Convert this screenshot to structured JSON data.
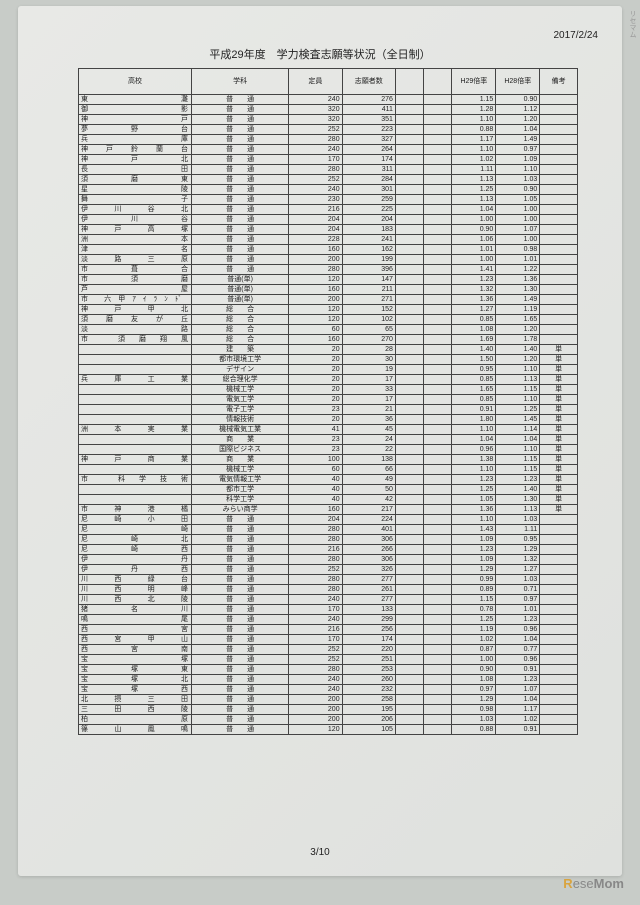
{
  "date": "2017/2/24",
  "title": "平成29年度　学力検査志願等状況（全日制）",
  "pagenum": "3/10",
  "brand_r": "R",
  "brand_ese": "ese",
  "brand_mom": "Mom",
  "side": "リセマム",
  "headers": {
    "school": "高校",
    "dept": "学科",
    "cap": "定員",
    "app": "志願者数",
    "h29": "H29倍率",
    "h28": "H28倍率",
    "note": "備考"
  },
  "rows": [
    {
      "school": "東　　　灘",
      "dept": "普　　通",
      "cap": 240,
      "app": 276,
      "h29": "1.15",
      "h28": "0.90",
      "note": ""
    },
    {
      "school": "御　　　影",
      "dept": "普　　通",
      "cap": 320,
      "app": 411,
      "h29": "1.28",
      "h28": "1.12",
      "note": ""
    },
    {
      "school": "神　　　戸",
      "dept": "普　　通",
      "cap": 320,
      "app": 351,
      "h29": "1.10",
      "h28": "1.20",
      "note": ""
    },
    {
      "school": "夢　野　台",
      "dept": "普　　通",
      "cap": 252,
      "app": 223,
      "h29": "0.88",
      "h28": "1.04",
      "note": ""
    },
    {
      "school": "兵　　　庫",
      "dept": "普　　通",
      "cap": 280,
      "app": 327,
      "h29": "1.17",
      "h28": "1.49",
      "note": ""
    },
    {
      "school": "神戸鈴蘭台",
      "dept": "普　　通",
      "cap": 240,
      "app": 264,
      "h29": "1.10",
      "h28": "0.97",
      "note": ""
    },
    {
      "school": "神　戸　北",
      "dept": "普　　通",
      "cap": 170,
      "app": 174,
      "h29": "1.02",
      "h28": "1.09",
      "note": ""
    },
    {
      "school": "長　　　田",
      "dept": "普　　通",
      "cap": 280,
      "app": 311,
      "h29": "1.11",
      "h28": "1.10",
      "note": ""
    },
    {
      "school": "須　磨　東",
      "dept": "普　　通",
      "cap": 252,
      "app": 284,
      "h29": "1.13",
      "h28": "1.03",
      "note": ""
    },
    {
      "school": "星　　　陵",
      "dept": "普　　通",
      "cap": 240,
      "app": 301,
      "h29": "1.25",
      "h28": "0.90",
      "note": ""
    },
    {
      "school": "舞　　　子",
      "dept": "普　　通",
      "cap": 230,
      "app": 259,
      "h29": "1.13",
      "h28": "1.05",
      "note": ""
    },
    {
      "school": "伊川谷北",
      "dept": "普　　通",
      "cap": 216,
      "app": 225,
      "h29": "1.04",
      "h28": "1.00",
      "note": ""
    },
    {
      "school": "伊　川　谷",
      "dept": "普　　通",
      "cap": 204,
      "app": 204,
      "h29": "1.00",
      "h28": "1.00",
      "note": ""
    },
    {
      "school": "神戸高塚",
      "dept": "普　　通",
      "cap": 204,
      "app": 183,
      "h29": "0.90",
      "h28": "1.07",
      "note": ""
    },
    {
      "school": "洲　　　本",
      "dept": "普　　通",
      "cap": 228,
      "app": 241,
      "h29": "1.06",
      "h28": "1.00",
      "note": ""
    },
    {
      "school": "津　　　名",
      "dept": "普　　通",
      "cap": 160,
      "app": 162,
      "h29": "1.01",
      "h28": "0.98",
      "note": ""
    },
    {
      "school": "淡　路　三　原",
      "dept": "普　　通",
      "cap": 200,
      "app": 199,
      "h29": "1.00",
      "h28": "1.01",
      "note": ""
    },
    {
      "school": "市　葺　合",
      "dept": "普　　通",
      "cap": 280,
      "app": 396,
      "h29": "1.41",
      "h28": "1.22",
      "note": ""
    },
    {
      "school": "市　須　磨",
      "dept": "普通(単)",
      "cap": 120,
      "app": 147,
      "h29": "1.23",
      "h28": "1.36",
      "note": ""
    },
    {
      "school": "芦　　　屋",
      "dept": "普通(単)",
      "cap": 160,
      "app": 211,
      "h29": "1.32",
      "h28": "1.30",
      "note": ""
    },
    {
      "school": "市 六甲ｱｲﾗﾝﾄﾞ",
      "dept": "普通(単)",
      "cap": 200,
      "app": 271,
      "h29": "1.36",
      "h28": "1.49",
      "note": ""
    },
    {
      "school": "神 戸 甲 北",
      "dept": "総　　合",
      "cap": 120,
      "app": 152,
      "h29": "1.27",
      "h28": "1.19",
      "note": ""
    },
    {
      "school": "須磨友が丘",
      "dept": "総　　合",
      "cap": 120,
      "app": 102,
      "h29": "0.85",
      "h28": "1.65",
      "note": ""
    },
    {
      "school": "淡　　　路",
      "dept": "総　　合",
      "cap": 60,
      "app": 65,
      "h29": "1.08",
      "h28": "1.20",
      "note": ""
    },
    {
      "school": "市 須磨翔風",
      "dept": "総　　合",
      "cap": 160,
      "app": 270,
      "h29": "1.69",
      "h28": "1.78",
      "note": ""
    },
    {
      "school": "",
      "dept": "建　　築",
      "cap": 20,
      "app": 28,
      "h29": "1.40",
      "h28": "1.40",
      "note": "単"
    },
    {
      "school": "",
      "dept": "都市環境工学",
      "cap": 20,
      "app": 30,
      "h29": "1.50",
      "h28": "1.20",
      "note": "単"
    },
    {
      "school": "",
      "dept": "デザイン",
      "cap": 20,
      "app": 19,
      "h29": "0.95",
      "h28": "1.10",
      "note": "単"
    },
    {
      "school": "兵 庫 工 業",
      "dept": "総合理化学",
      "cap": 20,
      "app": 17,
      "h29": "0.85",
      "h28": "1.13",
      "note": "単"
    },
    {
      "school": "",
      "dept": "機械工学",
      "cap": 20,
      "app": 33,
      "h29": "1.65",
      "h28": "1.15",
      "note": "単"
    },
    {
      "school": "",
      "dept": "電気工学",
      "cap": 20,
      "app": 17,
      "h29": "0.85",
      "h28": "1.10",
      "note": "単"
    },
    {
      "school": "",
      "dept": "電子工学",
      "cap": 23,
      "app": 21,
      "h29": "0.91",
      "h28": "1.25",
      "note": "単"
    },
    {
      "school": "",
      "dept": "情報技術",
      "cap": 20,
      "app": 36,
      "h29": "1.80",
      "h28": "1.45",
      "note": "単"
    },
    {
      "school": "洲 本 実 業",
      "dept": "機械電気工業",
      "cap": 41,
      "app": 45,
      "h29": "1.10",
      "h28": "1.14",
      "note": "単"
    },
    {
      "school": "",
      "dept": "商　　業",
      "cap": 23,
      "app": 24,
      "h29": "1.04",
      "h28": "1.04",
      "note": "単"
    },
    {
      "school": "",
      "dept": "国際ビジネス",
      "cap": 23,
      "app": 22,
      "h29": "0.96",
      "h28": "1.10",
      "note": "単"
    },
    {
      "school": "神 戸 商 業",
      "dept": "商　　業",
      "cap": 100,
      "app": 138,
      "h29": "1.38",
      "h28": "1.15",
      "note": "単"
    },
    {
      "school": "",
      "dept": "機械工学",
      "cap": 60,
      "app": 66,
      "h29": "1.10",
      "h28": "1.15",
      "note": "単"
    },
    {
      "school": "市 科学技術",
      "dept": "電気情報工学",
      "cap": 40,
      "app": 49,
      "h29": "1.23",
      "h28": "1.23",
      "note": "単"
    },
    {
      "school": "",
      "dept": "都市工学",
      "cap": 40,
      "app": 50,
      "h29": "1.25",
      "h28": "1.40",
      "note": "単"
    },
    {
      "school": "",
      "dept": "科学工学",
      "cap": 40,
      "app": 42,
      "h29": "1.05",
      "h28": "1.30",
      "note": "単"
    },
    {
      "school": "市 神 港 橘",
      "dept": "みらい商学",
      "cap": 160,
      "app": 217,
      "h29": "1.36",
      "h28": "1.13",
      "note": "単"
    },
    {
      "school": "尼 崎 小 田",
      "dept": "普　　通",
      "cap": 204,
      "app": 224,
      "h29": "1.10",
      "h28": "1.03",
      "note": ""
    },
    {
      "school": "尼　　　崎",
      "dept": "普　　通",
      "cap": 280,
      "app": 401,
      "h29": "1.43",
      "h28": "1.11",
      "note": ""
    },
    {
      "school": "尼　崎　北",
      "dept": "普　　通",
      "cap": 280,
      "app": 306,
      "h29": "1.09",
      "h28": "0.95",
      "note": ""
    },
    {
      "school": "尼　崎　西",
      "dept": "普　　通",
      "cap": 216,
      "app": 266,
      "h29": "1.23",
      "h28": "1.29",
      "note": ""
    },
    {
      "school": "伊　　　丹",
      "dept": "普　　通",
      "cap": 280,
      "app": 306,
      "h29": "1.09",
      "h28": "1.32",
      "note": ""
    },
    {
      "school": "伊　丹　西",
      "dept": "普　　通",
      "cap": 252,
      "app": 326,
      "h29": "1.29",
      "h28": "1.27",
      "note": ""
    },
    {
      "school": "川西緑台",
      "dept": "普　　通",
      "cap": 280,
      "app": 277,
      "h29": "0.99",
      "h28": "1.03",
      "note": ""
    },
    {
      "school": "川西明峰",
      "dept": "普　　通",
      "cap": 280,
      "app": 261,
      "h29": "0.89",
      "h28": "0.71",
      "note": ""
    },
    {
      "school": "川西北陵",
      "dept": "普　　通",
      "cap": 240,
      "app": 277,
      "h29": "1.15",
      "h28": "0.97",
      "note": ""
    },
    {
      "school": "猪　名　川",
      "dept": "普　　通",
      "cap": 170,
      "app": 133,
      "h29": "0.78",
      "h28": "1.01",
      "note": ""
    },
    {
      "school": "鳴　　　尾",
      "dept": "普　　通",
      "cap": 240,
      "app": 299,
      "h29": "1.25",
      "h28": "1.23",
      "note": ""
    },
    {
      "school": "西　　　宮",
      "dept": "普　　通",
      "cap": 216,
      "app": 256,
      "h29": "1.19",
      "h28": "0.96",
      "note": ""
    },
    {
      "school": "西宮甲山",
      "dept": "普　　通",
      "cap": 170,
      "app": 174,
      "h29": "1.02",
      "h28": "1.04",
      "note": ""
    },
    {
      "school": "西　宮　南",
      "dept": "普　　通",
      "cap": 252,
      "app": 220,
      "h29": "0.87",
      "h28": "0.77",
      "note": ""
    },
    {
      "school": "宝　　　塚",
      "dept": "普　　通",
      "cap": 252,
      "app": 251,
      "h29": "1.00",
      "h28": "0.96",
      "note": ""
    },
    {
      "school": "宝　塚　東",
      "dept": "普　　通",
      "cap": 280,
      "app": 253,
      "h29": "0.90",
      "h28": "0.91",
      "note": ""
    },
    {
      "school": "宝　塚　北",
      "dept": "普　　通",
      "cap": 240,
      "app": 260,
      "h29": "1.08",
      "h28": "1.23",
      "note": ""
    },
    {
      "school": "宝　塚　西",
      "dept": "普　　通",
      "cap": 240,
      "app": 232,
      "h29": "0.97",
      "h28": "1.07",
      "note": ""
    },
    {
      "school": "北 摂 三 田",
      "dept": "普　　通",
      "cap": 200,
      "app": 258,
      "h29": "1.29",
      "h28": "1.04",
      "note": ""
    },
    {
      "school": "三 田 西 陵",
      "dept": "普　　通",
      "cap": 200,
      "app": 195,
      "h29": "0.98",
      "h28": "1.17",
      "note": ""
    },
    {
      "school": "柏　　　原",
      "dept": "普　　通",
      "cap": 200,
      "app": 206,
      "h29": "1.03",
      "h28": "1.02",
      "note": ""
    },
    {
      "school": "篠山鳳鳴",
      "dept": "普　　通",
      "cap": 120,
      "app": 105,
      "h29": "0.88",
      "h28": "0.91",
      "note": ""
    }
  ]
}
